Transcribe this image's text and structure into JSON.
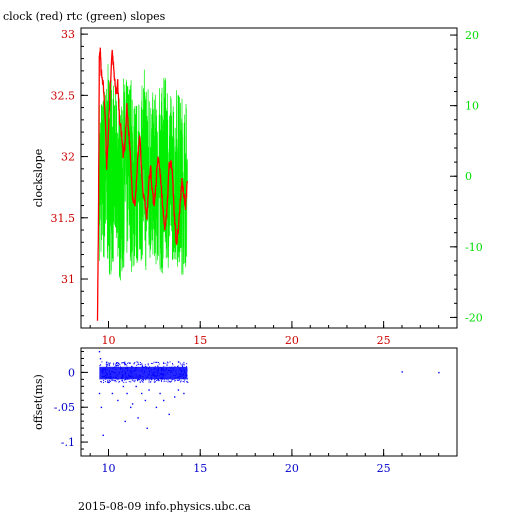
{
  "title": "clock (red) rtc (green) slopes",
  "footer": "2015-08-09 info.physics.ubc.ca",
  "colors": {
    "clock": "#ff0000",
    "rtc": "#00ee00",
    "offset": "#0000ff",
    "frame": "#000000",
    "left_axis_text": "#cc0000",
    "right_axis_text": "#00dd00",
    "bottom_axis": "#0000cc"
  },
  "chart_data": [
    {
      "type": "line",
      "title": "clock (red) rtc (green) slopes",
      "xlabel": "",
      "ylabel": "clockslope",
      "xlim": [
        8.5,
        29
      ],
      "ylim": [
        30.6,
        33.05
      ],
      "y2lim": [
        -21.5,
        21
      ],
      "x_ticks": [
        10,
        15,
        20,
        25
      ],
      "y_ticks": [
        31,
        31.5,
        32,
        32.5,
        33
      ],
      "y2_ticks": [
        -20,
        -10,
        0,
        10,
        20
      ],
      "grid": false,
      "series": [
        {
          "name": "clock",
          "axis": "left",
          "color": "#ff0000",
          "x": [
            9.4,
            9.45,
            9.5,
            9.55,
            9.6,
            9.7,
            9.8,
            9.9,
            10.0,
            10.1,
            10.2,
            10.3,
            10.4,
            10.5,
            10.6,
            10.7,
            10.8,
            10.9,
            11.0,
            11.1,
            11.2,
            11.3,
            11.4,
            11.5,
            11.6,
            11.7,
            11.8,
            11.9,
            12.0,
            12.1,
            12.2,
            12.3,
            12.4,
            12.5,
            12.6,
            12.7,
            12.8,
            12.9,
            13.0,
            13.1,
            13.2,
            13.3,
            13.4,
            13.5,
            13.6,
            13.7,
            13.8,
            13.9,
            14.0,
            14.1,
            14.2,
            14.3
          ],
          "y": [
            30.7,
            31.4,
            32.8,
            32.85,
            32.7,
            32.6,
            32.4,
            31.9,
            32.2,
            32.6,
            32.85,
            32.7,
            32.5,
            32.6,
            32.3,
            32.2,
            32.0,
            32.1,
            32.4,
            32.2,
            32.0,
            31.7,
            31.6,
            31.7,
            32.0,
            32.2,
            31.9,
            31.7,
            31.6,
            31.5,
            31.8,
            31.9,
            31.7,
            31.6,
            31.8,
            32.0,
            31.9,
            31.7,
            31.5,
            31.4,
            31.6,
            31.9,
            32.0,
            31.8,
            31.5,
            31.3,
            31.4,
            31.6,
            31.8,
            31.7,
            31.6,
            31.8
          ]
        },
        {
          "name": "rtc",
          "axis": "right",
          "color": "#00ee00",
          "x_range": [
            9.5,
            14.3
          ],
          "envelope_low": [
            -12,
            -13,
            -14,
            -13,
            -12,
            -15,
            -13,
            -12,
            -14,
            -13,
            -12,
            -14,
            -13,
            -12,
            -13,
            -14,
            -12,
            -13,
            -12,
            -13,
            -14,
            -13
          ],
          "envelope_high": [
            12,
            14,
            16,
            13,
            12,
            10,
            14,
            15,
            12,
            11,
            13,
            16,
            14,
            12,
            10,
            13,
            14,
            12,
            11,
            13,
            12,
            11
          ]
        }
      ]
    },
    {
      "type": "scatter",
      "title": "",
      "xlabel": "",
      "ylabel": "offset(ms)",
      "xlim": [
        8.5,
        29
      ],
      "ylim": [
        -0.12,
        0.035
      ],
      "x_ticks": [
        10,
        15,
        20,
        25
      ],
      "y_ticks": [
        0,
        -0.05,
        -0.1
      ],
      "grid": false,
      "series": [
        {
          "name": "offset",
          "color": "#0000ff",
          "band_x": [
            9.5,
            14.3
          ],
          "band_y": [
            -0.01,
            0.008
          ],
          "outliers": [
            [
              9.5,
              0.03
            ],
            [
              9.55,
              0.02
            ],
            [
              9.5,
              -0.03
            ],
            [
              9.6,
              -0.05
            ],
            [
              9.7,
              -0.09
            ],
            [
              10.2,
              -0.03
            ],
            [
              10.5,
              -0.04
            ],
            [
              10.8,
              -0.02
            ],
            [
              11.0,
              -0.03
            ],
            [
              11.2,
              -0.05
            ],
            [
              11.3,
              -0.045
            ],
            [
              11.5,
              -0.02
            ],
            [
              11.8,
              -0.03
            ],
            [
              12.0,
              -0.04
            ],
            [
              12.2,
              -0.025
            ],
            [
              12.6,
              -0.05
            ],
            [
              12.8,
              -0.03
            ],
            [
              13.0,
              -0.04
            ],
            [
              13.3,
              -0.06
            ],
            [
              13.6,
              -0.035
            ],
            [
              13.8,
              -0.025
            ],
            [
              14.1,
              -0.03
            ],
            [
              12.1,
              -0.08
            ],
            [
              11.6,
              -0.065
            ],
            [
              10.9,
              -0.07
            ],
            [
              26.0,
              0.001
            ],
            [
              28.0,
              0.0
            ]
          ]
        }
      ]
    }
  ]
}
